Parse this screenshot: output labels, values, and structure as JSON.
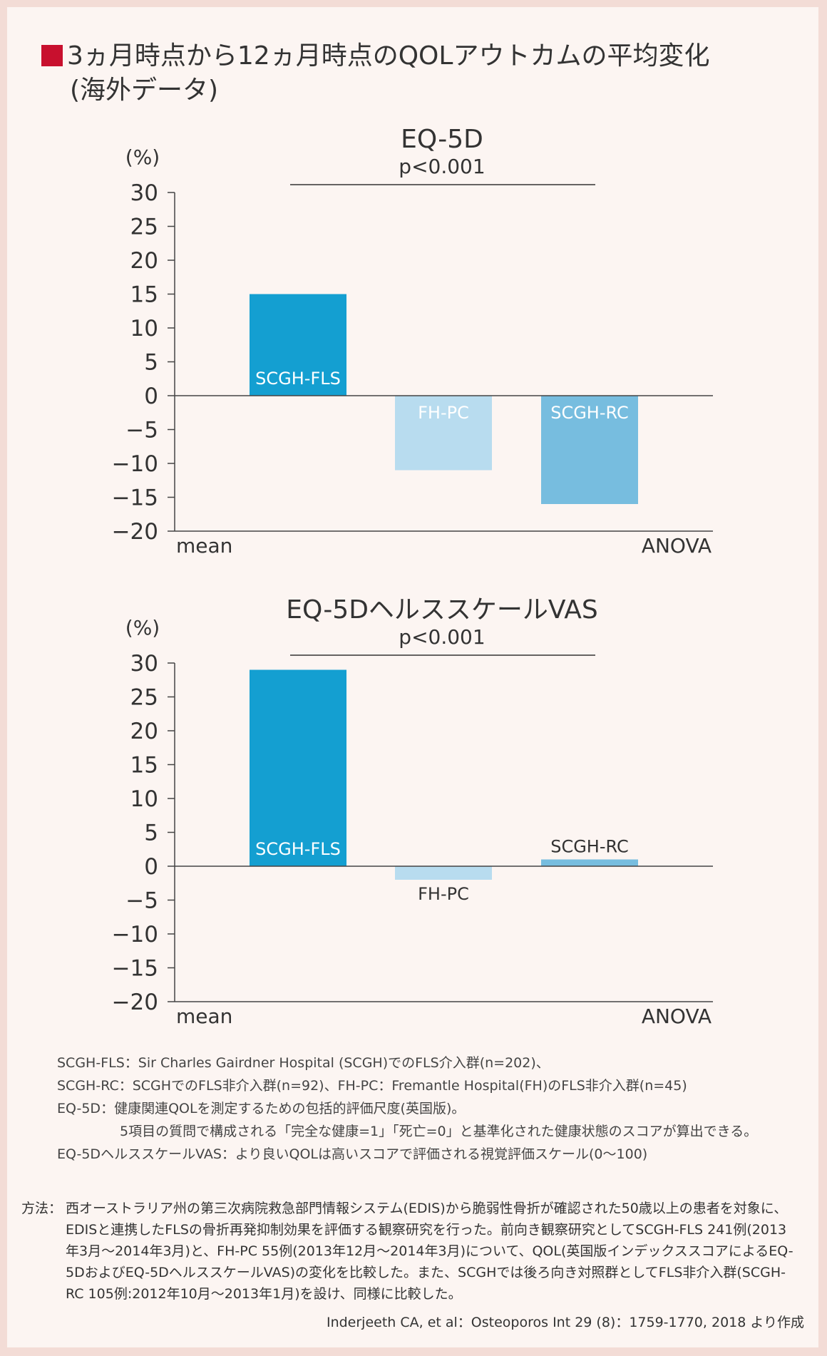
{
  "heading": {
    "line1": "3ヵ月時点から12ヵ月時点のQOLアウトカムの平均変化",
    "line2": "(海外データ)"
  },
  "chart_data": [
    {
      "type": "bar",
      "title": "EQ-5D",
      "subtitle": "p<0.001",
      "ylabel": "(%)",
      "xlabel_left": "mean",
      "xlabel_right": "ANOVA",
      "ylim": [
        -20,
        30
      ],
      "yticks": [
        "30",
        "25",
        "20",
        "15",
        "10",
        "5",
        "0",
        "−5",
        "−10",
        "−15",
        "−20"
      ],
      "categories": [
        "SCGH-FLS",
        "FH-PC",
        "SCGH-RC"
      ],
      "values": [
        15,
        -11,
        -16
      ],
      "colors": [
        "#149fd1",
        "#b8dcef",
        "#77bddf"
      ]
    },
    {
      "type": "bar",
      "title": "EQ-5DヘルススケールVAS",
      "subtitle": "p<0.001",
      "ylabel": "(%)",
      "xlabel_left": "mean",
      "xlabel_right": "ANOVA",
      "ylim": [
        -20,
        30
      ],
      "yticks": [
        "30",
        "25",
        "20",
        "15",
        "10",
        "5",
        "0",
        "−5",
        "−10",
        "−15",
        "−20"
      ],
      "categories": [
        "SCGH-FLS",
        "FH-PC",
        "SCGH-RC"
      ],
      "values": [
        29,
        -2,
        1
      ],
      "colors": [
        "#149fd1",
        "#b8dcef",
        "#77bddf"
      ]
    }
  ],
  "notes": [
    "SCGH-FLS：Sir Charles Gairdner Hospital (SCGH)でのFLS介入群(n=202)、",
    "SCGH-RC：SCGHでのFLS非介入群(n=92)、FH-PC：Fremantle Hospital(FH)のFLS非介入群(n=45)",
    "EQ-5D：健康関連QOLを測定するための包括的評価尺度(英国版)。",
    "5項目の質問で構成される「完全な健康=1」「死亡=0」と基準化された健康状態のスコアが算出できる。",
    "EQ-5DヘルススケールVAS：より良いQOLは高いスコアで評価される視覚評価スケール(0〜100)"
  ],
  "method": {
    "label": "方法：",
    "text": "西オーストラリア州の第三次病院救急部門情報システム(EDIS)から脆弱性骨折が確認された50歳以上の患者を対象に、EDISと連携したFLSの骨折再発抑制効果を評価する観察研究を行った。前向き観察研究としてSCGH-FLS 241例(2013年3月〜2014年3月)と、FH-PC 55例(2013年12月〜2014年3月)について、QOL(英国版インデックススコアによるEQ-5DおよびEQ-5DヘルススケールVAS)の変化を比較した。また、SCGHでは後ろ向き対照群としてFLS非介入群(SCGH-RC 105例:2012年10月〜2013年1月)を設け、同様に比較した。"
  },
  "source": "Inderjeeth CA, et al：Osteoporos Int 29 (8)：1759-1770, 2018 より作成"
}
